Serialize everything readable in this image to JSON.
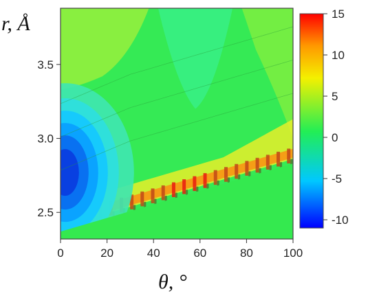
{
  "chart_data": {
    "type": "heatmap",
    "xlabel": "θ, °",
    "ylabel": "r, Å",
    "xlim": [
      0,
      100
    ],
    "ylim": [
      2.32,
      3.88
    ],
    "x_ticks": [
      "0",
      "20",
      "40",
      "60",
      "80",
      "100"
    ],
    "y_ticks": [
      "2.5",
      "3.0",
      "3.5"
    ],
    "colorbar": {
      "range": [
        -11,
        15
      ],
      "ticks": [
        "15",
        "10",
        "5",
        "0",
        "-5",
        "-10"
      ],
      "colors": [
        "#0000ff",
        "#00c8ff",
        "#22ee55",
        "#f4f000",
        "#ff9900",
        "#ff0000"
      ]
    },
    "features": {
      "minimum_well": {
        "theta": 2,
        "r": 2.77,
        "value": -9.5
      },
      "background_value": 1.5,
      "repulsive_wall_line": {
        "theta": [
          0,
          100
        ],
        "r": [
          2.42,
          2.88
        ]
      }
    }
  }
}
